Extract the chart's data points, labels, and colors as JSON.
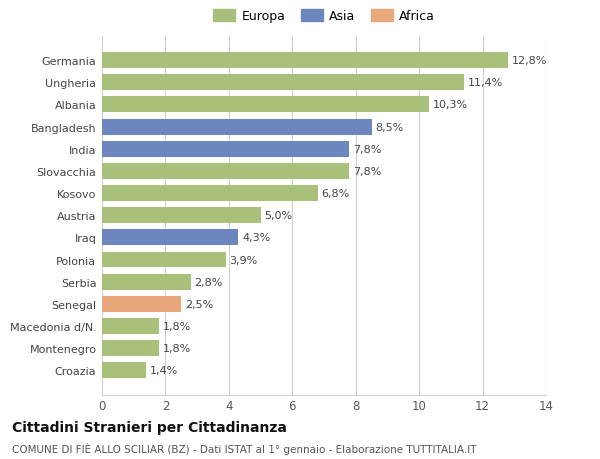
{
  "categories": [
    "Germania",
    "Ungheria",
    "Albania",
    "Bangladesh",
    "India",
    "Slovacchia",
    "Kosovo",
    "Austria",
    "Iraq",
    "Polonia",
    "Serbia",
    "Senegal",
    "Macedonia d/N.",
    "Montenegro",
    "Croazia"
  ],
  "values": [
    12.8,
    11.4,
    10.3,
    8.5,
    7.8,
    7.8,
    6.8,
    5.0,
    4.3,
    3.9,
    2.8,
    2.5,
    1.8,
    1.8,
    1.4
  ],
  "labels": [
    "12,8%",
    "11,4%",
    "10,3%",
    "8,5%",
    "7,8%",
    "7,8%",
    "6,8%",
    "5,0%",
    "4,3%",
    "3,9%",
    "2,8%",
    "2,5%",
    "1,8%",
    "1,8%",
    "1,4%"
  ],
  "colors": [
    "#a8c07a",
    "#a8c07a",
    "#a8c07a",
    "#6b87be",
    "#6b87be",
    "#a8c07a",
    "#a8c07a",
    "#a8c07a",
    "#6b87be",
    "#a8c07a",
    "#a8c07a",
    "#e8a87c",
    "#a8c07a",
    "#a8c07a",
    "#a8c07a"
  ],
  "legend_labels": [
    "Europa",
    "Asia",
    "Africa"
  ],
  "legend_colors": [
    "#a8c07a",
    "#6b87be",
    "#e8a87c"
  ],
  "xlim": [
    0,
    14
  ],
  "xticks": [
    0,
    2,
    4,
    6,
    8,
    10,
    12,
    14
  ],
  "title": "Cittadini Stranieri per Cittadinanza",
  "subtitle": "COMUNE DI FIÈ ALLO SCILIAR (BZ) - Dati ISTAT al 1° gennaio - Elaborazione TUTTITALIA.IT",
  "bg_color": "#ffffff",
  "grid_color": "#d0d0d0",
  "bar_height": 0.72,
  "label_fontsize": 8,
  "ytick_fontsize": 8,
  "xtick_fontsize": 8.5,
  "legend_fontsize": 9,
  "title_fontsize": 10,
  "subtitle_fontsize": 7.5
}
